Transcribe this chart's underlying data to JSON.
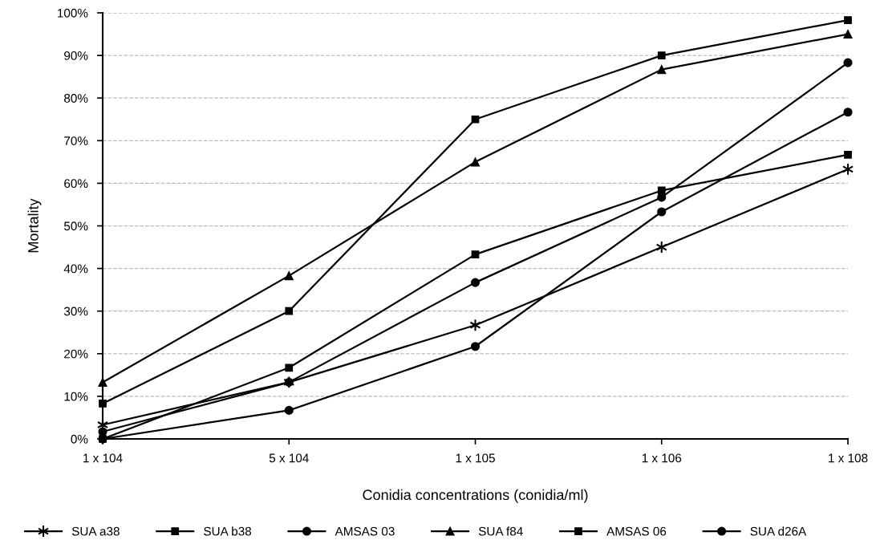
{
  "chart_data": {
    "type": "line",
    "xlabel": "Conidia concentrations (conidia/ml)",
    "ylabel": "Mortality",
    "categories": [
      "1 x 104",
      "5 x 104",
      "1 x 105",
      "1 x 106",
      "1 x 108"
    ],
    "series": [
      {
        "name": "SUA a38",
        "color": "#000000",
        "marker": "cross",
        "values": [
          3.3,
          13.3,
          26.7,
          45,
          63.3
        ]
      },
      {
        "name": "SUA b38",
        "color": "#000000",
        "marker": "square",
        "values": [
          0,
          16.7,
          43.3,
          58.3,
          66.7
        ]
      },
      {
        "name": "AMSAS 03",
        "color": "#000000",
        "marker": "circle",
        "values": [
          1.7,
          13.3,
          36.7,
          56.7,
          88.3
        ]
      },
      {
        "name": "SUA f84",
        "color": "#000000",
        "marker": "triangle",
        "values": [
          13.3,
          38.3,
          65,
          86.7,
          95
        ]
      },
      {
        "name": "AMSAS 06",
        "color": "#000000",
        "marker": "square",
        "values": [
          8.3,
          30,
          75,
          90,
          98.3
        ]
      },
      {
        "name": "SUA d26A",
        "color": "#000000",
        "marker": "circle",
        "values": [
          0,
          6.7,
          21.7,
          53.3,
          76.7
        ]
      }
    ],
    "ylim": [
      0,
      100
    ],
    "yticks": [
      {
        "value": 0,
        "label": "0%"
      },
      {
        "value": 10,
        "label": "10%"
      },
      {
        "value": 20,
        "label": "20%"
      },
      {
        "value": 30,
        "label": "30%"
      },
      {
        "value": 40,
        "label": "40%"
      },
      {
        "value": 50,
        "label": "50%"
      },
      {
        "value": 60,
        "label": "60%"
      },
      {
        "value": 70,
        "label": "70%"
      },
      {
        "value": 80,
        "label": "80%"
      },
      {
        "value": 90,
        "label": "90%"
      },
      {
        "value": 100,
        "label": "100%"
      }
    ],
    "grid": "y",
    "legend": "bottom",
    "line_style": "solid"
  }
}
